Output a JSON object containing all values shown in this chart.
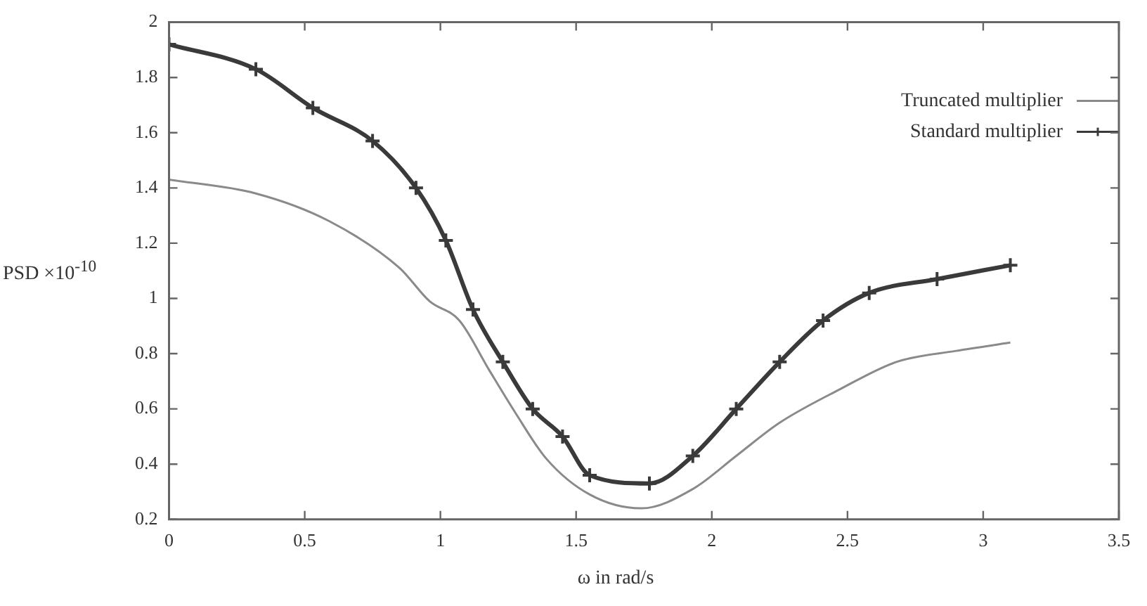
{
  "chart_data": {
    "type": "line",
    "xlabel": "ω in rad/s",
    "ylabel": "PSD ×10$^{-10}$",
    "xlim": [
      0,
      3.5
    ],
    "xticks": [
      0,
      0.5,
      1,
      1.5,
      2,
      2.5,
      3,
      3.5
    ],
    "ylim": [
      0.2,
      2
    ],
    "yticks": [
      0.2,
      0.4,
      0.6,
      0.8,
      1,
      1.2,
      1.4,
      1.6,
      1.8,
      2
    ],
    "grid": false,
    "legend": "top right",
    "line_style": "solid",
    "series": [
      {
        "name": "Truncated multiplier",
        "color": "#8a8a8a",
        "marker": "none",
        "x": [
          0,
          0.32,
          0.59,
          0.85,
          0.96,
          1.07,
          1.18,
          1.28,
          1.39,
          1.55,
          1.74,
          1.93,
          2.09,
          2.25,
          2.47,
          2.68,
          2.9,
          3.1
        ],
        "values": [
          1.43,
          1.38,
          1.28,
          1.11,
          0.99,
          0.92,
          0.74,
          0.58,
          0.42,
          0.29,
          0.24,
          0.31,
          0.43,
          0.55,
          0.67,
          0.77,
          0.81,
          0.84
        ]
      },
      {
        "name": "Standard multiplier",
        "color": "#3a3a3a",
        "marker": "cross",
        "x": [
          0,
          0.32,
          0.53,
          0.75,
          0.91,
          1.02,
          1.12,
          1.23,
          1.34,
          1.45,
          1.55,
          1.77,
          1.93,
          2.09,
          2.25,
          2.41,
          2.58,
          2.83,
          3.1
        ],
        "values": [
          1.92,
          1.83,
          1.69,
          1.57,
          1.4,
          1.21,
          0.96,
          0.77,
          0.6,
          0.5,
          0.36,
          0.33,
          0.43,
          0.6,
          0.77,
          0.92,
          1.02,
          1.07,
          1.12
        ]
      }
    ]
  }
}
